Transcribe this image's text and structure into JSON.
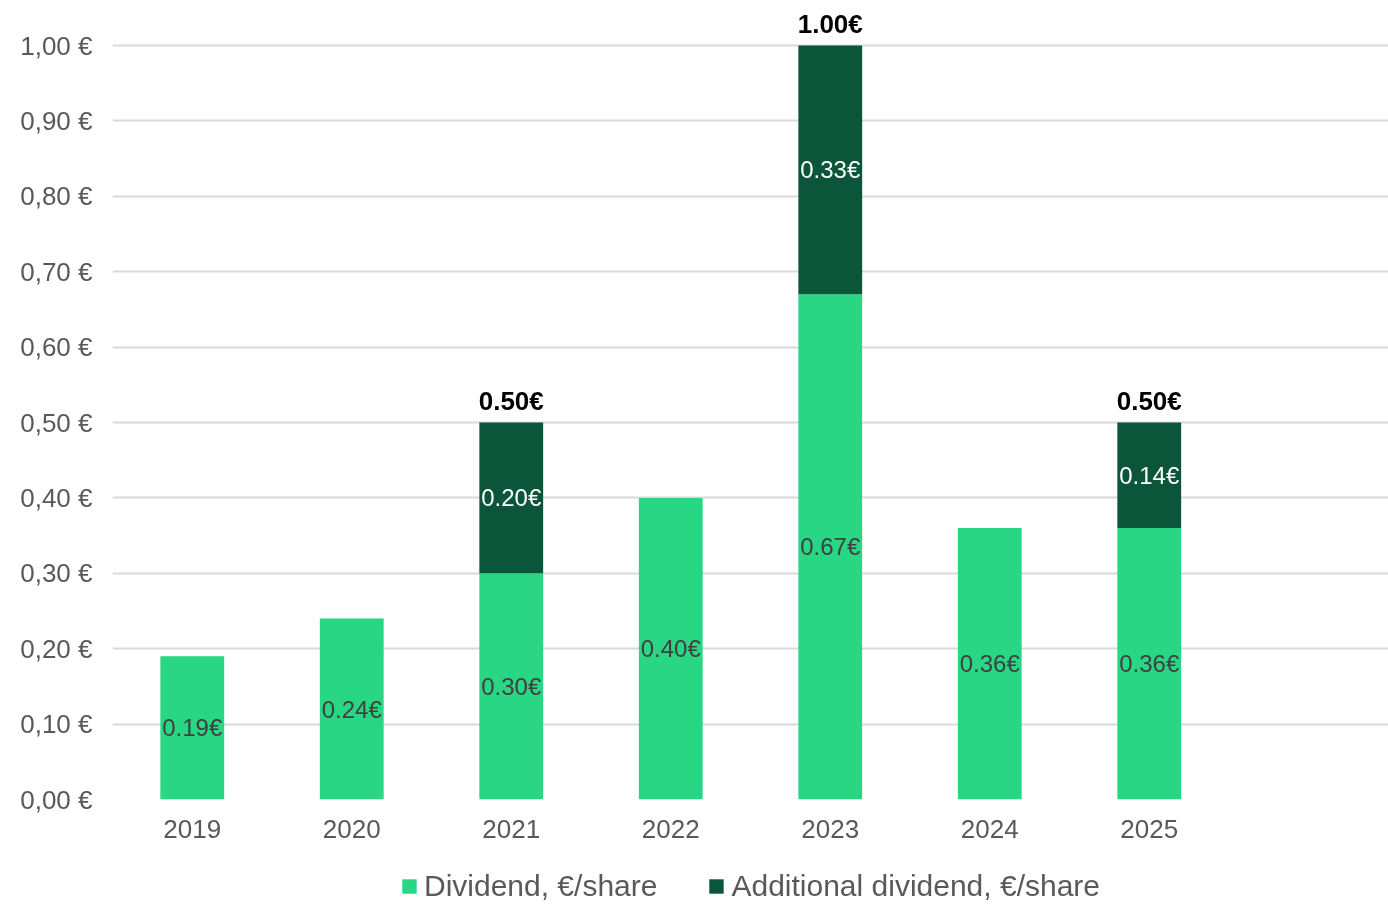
{
  "chart_data": {
    "type": "bar",
    "stacked": true,
    "categories": [
      "2019",
      "2020",
      "2021",
      "2022",
      "2023",
      "2024",
      "2025",
      null
    ],
    "series": [
      {
        "name": "Dividend, €/share",
        "color": "#28d684",
        "values": [
          0.19,
          0.24,
          0.3,
          0.4,
          0.67,
          0.36,
          0.36,
          null
        ],
        "value_labels": [
          "0.19€",
          "0.24€",
          "0.30€",
          "0.40€",
          "0.67€",
          "0.36€",
          "0.36€",
          null
        ]
      },
      {
        "name": "Additional dividend, €/share",
        "color": "#0b553a",
        "values": [
          null,
          null,
          0.2,
          null,
          0.33,
          null,
          0.14,
          null
        ],
        "value_labels": [
          null,
          null,
          "0.20€",
          null,
          "0.33€",
          null,
          "0.14€",
          null
        ]
      }
    ],
    "totals": [
      null,
      null,
      "0.50€",
      null,
      "1.00€",
      null,
      "0.50€",
      null
    ],
    "ylim": [
      0,
      1.0
    ],
    "yticks": [
      {
        "value": 0,
        "label": "0,00 €"
      },
      {
        "value": 0.1,
        "label": "0,10 €"
      },
      {
        "value": 0.2,
        "label": "0,20 €"
      },
      {
        "value": 0.3,
        "label": "0,30 €"
      },
      {
        "value": 0.4,
        "label": "0,40 €"
      },
      {
        "value": 0.5,
        "label": "0,50 €"
      },
      {
        "value": 0.6,
        "label": "0,60 €"
      },
      {
        "value": 0.7,
        "label": "0,70 €"
      },
      {
        "value": 0.8,
        "label": "0,80 €"
      },
      {
        "value": 0.9,
        "label": "0,90 €"
      },
      {
        "value": 1.0,
        "label": "1,00 €"
      }
    ],
    "grid": "y",
    "legend": "bottom"
  }
}
